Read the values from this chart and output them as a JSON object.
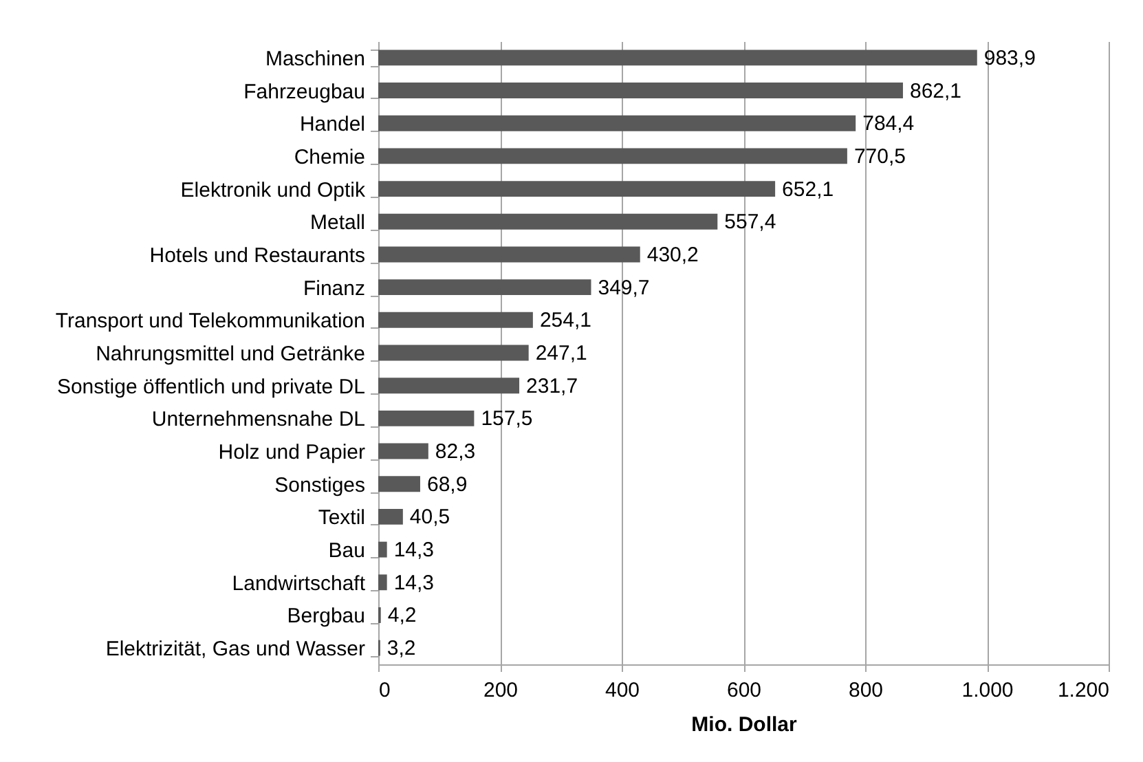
{
  "chart_data": {
    "type": "bar",
    "orientation": "horizontal",
    "categories": [
      "Maschinen",
      "Fahrzeugbau",
      "Handel",
      "Chemie",
      "Elektronik und Optik",
      "Metall",
      "Hotels und Restaurants",
      "Finanz",
      "Transport und Telekommunikation",
      "Nahrungsmittel und Getränke",
      "Sonstige öffentlich und private DL",
      "Unternehmensnahe DL",
      "Holz und Papier",
      "Sonstiges",
      "Textil",
      "Bau",
      "Landwirtschaft",
      "Bergbau",
      "Elektrizität, Gas und Wasser"
    ],
    "values": [
      983.9,
      862.1,
      784.4,
      770.5,
      652.1,
      557.4,
      430.2,
      349.7,
      254.1,
      247.1,
      231.7,
      157.5,
      82.3,
      68.9,
      40.5,
      14.3,
      14.3,
      4.2,
      3.2
    ],
    "value_labels": [
      "983,9",
      "862,1",
      "784,4",
      "770,5",
      "652,1",
      "557,4",
      "430,2",
      "349,7",
      "254,1",
      "247,1",
      "231,7",
      "157,5",
      "82,3",
      "68,9",
      "40,5",
      "14,3",
      "14,3",
      "4,2",
      "3,2"
    ],
    "color": "#595959",
    "xlabel": "Mio. Dollar",
    "xlim": [
      0,
      1200
    ],
    "xticks": [
      0,
      200,
      400,
      600,
      800,
      {
        "value": 1000,
        "label": "1.000"
      },
      {
        "value": 1200,
        "label": "1.200"
      }
    ],
    "grid": "x"
  }
}
